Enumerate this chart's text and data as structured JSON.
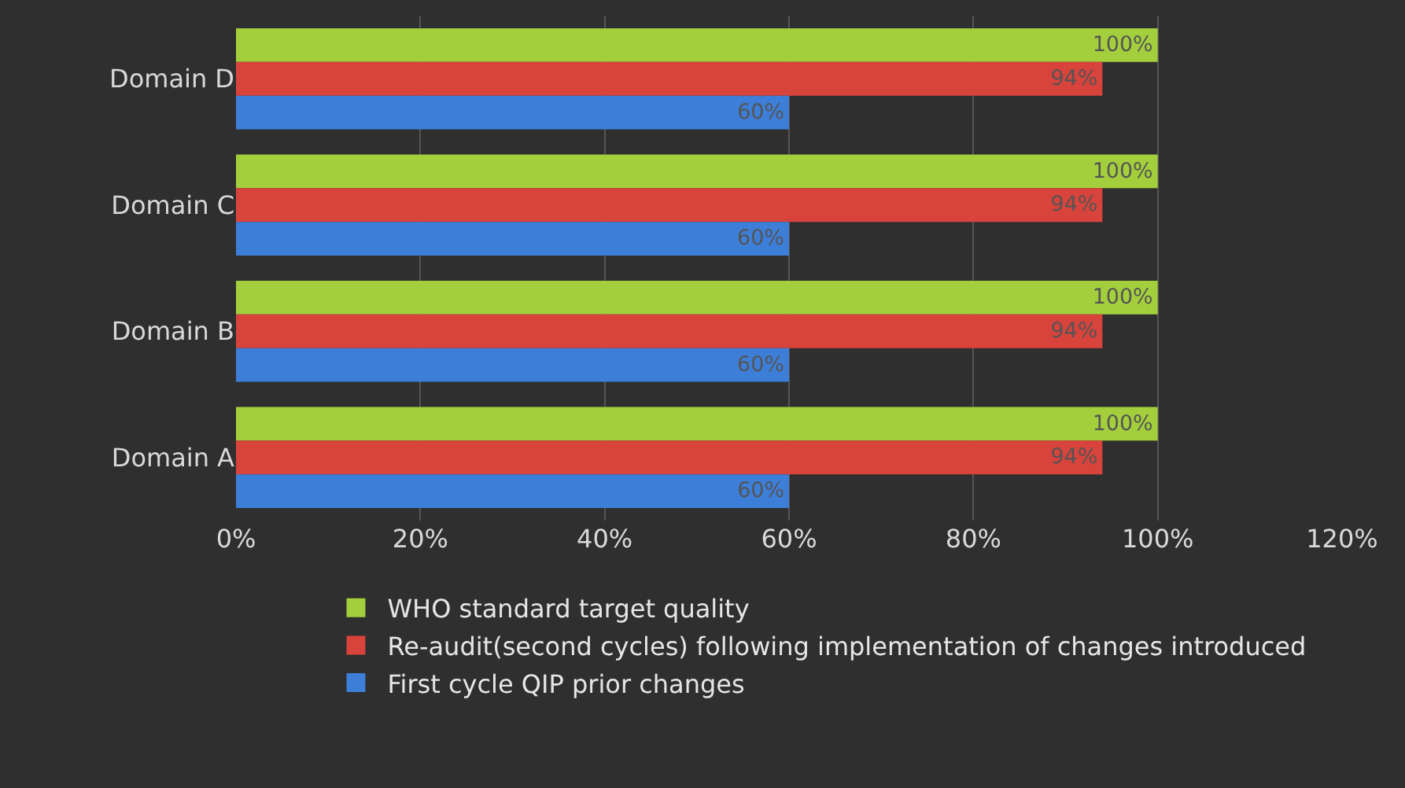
{
  "chart_data": {
    "type": "bar",
    "orientation": "horizontal",
    "categories": [
      "Domain D",
      "Domain C",
      "Domain B",
      "Domain A"
    ],
    "series": [
      {
        "name": "WHO standard target quality",
        "color": "#a4cf3c",
        "values": [
          100,
          100,
          100,
          100
        ],
        "value_labels": [
          "100%",
          "100%",
          "100%",
          "100%"
        ]
      },
      {
        "name": "Re-audit(second cycles) following implementation of changes introduced",
        "color": "#d8433c",
        "values": [
          94,
          94,
          94,
          94
        ],
        "value_labels": [
          "94%",
          "94%",
          "94%",
          "94%"
        ]
      },
      {
        "name": "First cycle QIP prior changes",
        "color": "#3d7ed8",
        "values": [
          60,
          60,
          60,
          60
        ],
        "value_labels": [
          "60%",
          "60%",
          "60%",
          "60%"
        ]
      }
    ],
    "xlim": [
      0,
      120
    ],
    "xticks": [
      {
        "value": 0,
        "label": "0%"
      },
      {
        "value": 20,
        "label": "20%"
      },
      {
        "value": 40,
        "label": "40%"
      },
      {
        "value": 60,
        "label": "60%"
      },
      {
        "value": 80,
        "label": "80%"
      },
      {
        "value": 100,
        "label": "100%"
      },
      {
        "value": 120,
        "label": "120%"
      }
    ],
    "grid": "x",
    "legend": "bottom"
  }
}
